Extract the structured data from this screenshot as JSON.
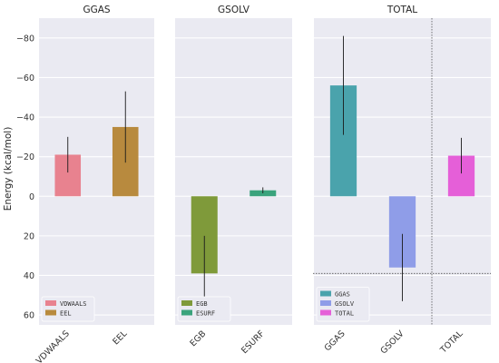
{
  "chart_data": {
    "type": "bar",
    "ylabel": "Energy (kcal/mol)",
    "ylim": [
      65,
      -90
    ],
    "yticks": [
      -80,
      -60,
      -40,
      -20,
      0,
      20,
      40,
      60
    ],
    "y_inverted": true,
    "grid": true,
    "legend_placement": "lower-left",
    "panels": [
      {
        "title": "GGAS",
        "categories": [
          "VDWAALS",
          "EEL"
        ],
        "values": [
          -21,
          -35
        ],
        "errors": [
          9,
          18
        ],
        "colors": [
          "#e8828f",
          "#b88a3e"
        ],
        "legend": [
          "VDWAALS",
          "EEL"
        ]
      },
      {
        "title": "GSOLV",
        "categories": [
          "EGB",
          "ESURF"
        ],
        "values": [
          39,
          -3
        ],
        "errors": [
          19,
          1.5
        ],
        "colors": [
          "#7f9a3a",
          "#3aa37c"
        ],
        "legend": [
          "EGB",
          "ESURF"
        ]
      },
      {
        "title": "TOTAL",
        "categories": [
          "GGAS",
          "GSOLV",
          "TOTAL"
        ],
        "values": [
          -56,
          36,
          -20.5
        ],
        "errors": [
          25,
          17,
          9
        ],
        "colors": [
          "#4aa3ac",
          "#8f9de8",
          "#e55fd8"
        ],
        "legend": [
          "GGAS",
          "GSOLV",
          "TOTAL"
        ],
        "reference_line_y": 39,
        "reference_line_category": "TOTAL"
      }
    ]
  }
}
